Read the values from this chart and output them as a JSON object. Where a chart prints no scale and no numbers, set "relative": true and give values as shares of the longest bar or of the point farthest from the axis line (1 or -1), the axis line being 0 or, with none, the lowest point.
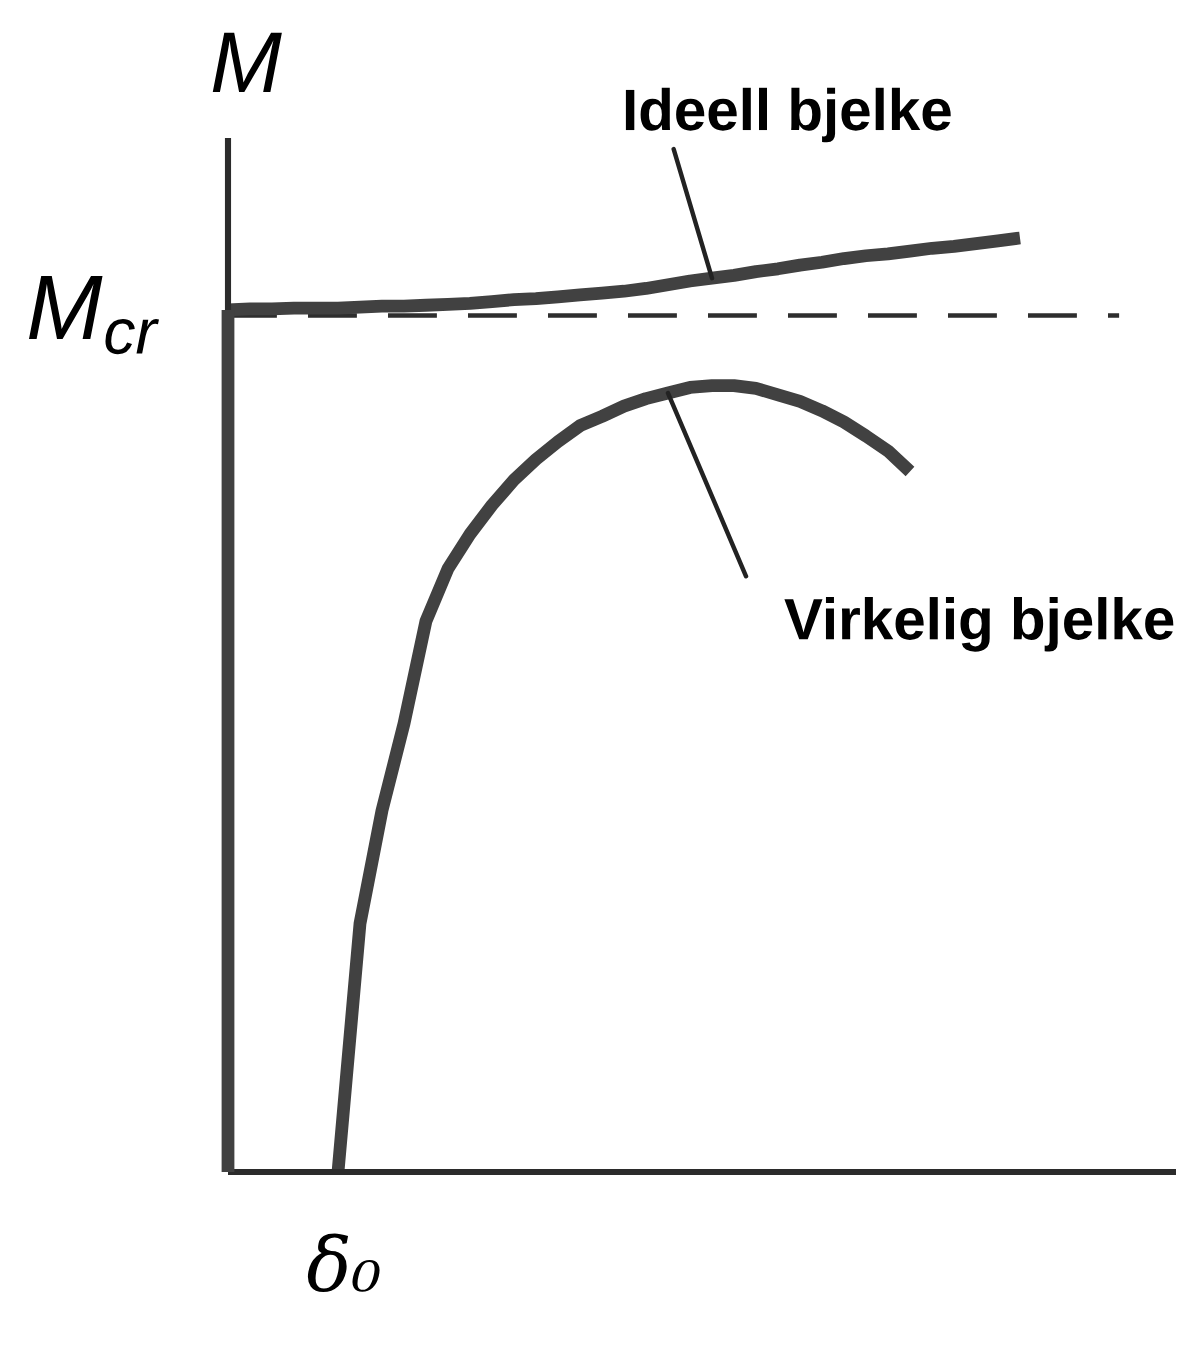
{
  "chart_data": {
    "type": "line",
    "relative": true,
    "ylabel": "M",
    "categories": [
      null,
      null,
      null,
      null,
      null,
      null,
      null,
      null,
      null,
      null,
      null,
      null,
      null,
      null,
      null,
      null,
      null,
      null,
      null,
      null,
      null,
      null,
      null,
      null,
      null,
      null,
      null,
      null,
      null,
      null,
      null,
      null,
      null,
      null,
      null,
      null,
      null
    ],
    "series": [
      {
        "name": "Ideell bjelke",
        "color": "#414141",
        "values": [
          0.923,
          0.924,
          0.924,
          0.925,
          0.925,
          0.925,
          0.926,
          0.927,
          0.927,
          0.928,
          0.929,
          0.93,
          0.932,
          0.934,
          0.935,
          0.937,
          0.939,
          0.941,
          0.943,
          0.946,
          0.95,
          0.954,
          0.957,
          0.96,
          0.964,
          0.967,
          0.971,
          0.974,
          0.978,
          0.981,
          0.983,
          0.986,
          0.989,
          0.991,
          0.994,
          0.997,
          1.0
        ]
      },
      {
        "name": "Virkelig bjelke",
        "color": "#414141",
        "values": [
          null,
          null,
          null,
          null,
          null,
          0,
          0.266,
          0.387,
          0.48,
          0.59,
          0.646,
          0.683,
          0.714,
          0.741,
          0.763,
          0.782,
          0.799,
          0.809,
          0.82,
          0.828,
          0.834,
          0.84,
          0.842,
          0.842,
          0.839,
          0.832,
          0.825,
          0.815,
          0.803,
          0.788,
          0.772,
          0.75,
          null,
          null,
          null,
          null,
          null
        ]
      }
    ],
    "ref_lines": [
      {
        "axis": "y",
        "value": 0.917,
        "label": "M$_{cr}$",
        "line_style": "dashed",
        "color": "#2e2e2e"
      }
    ],
    "annotations": [
      "δ₀"
    ],
    "legend": false
  }
}
